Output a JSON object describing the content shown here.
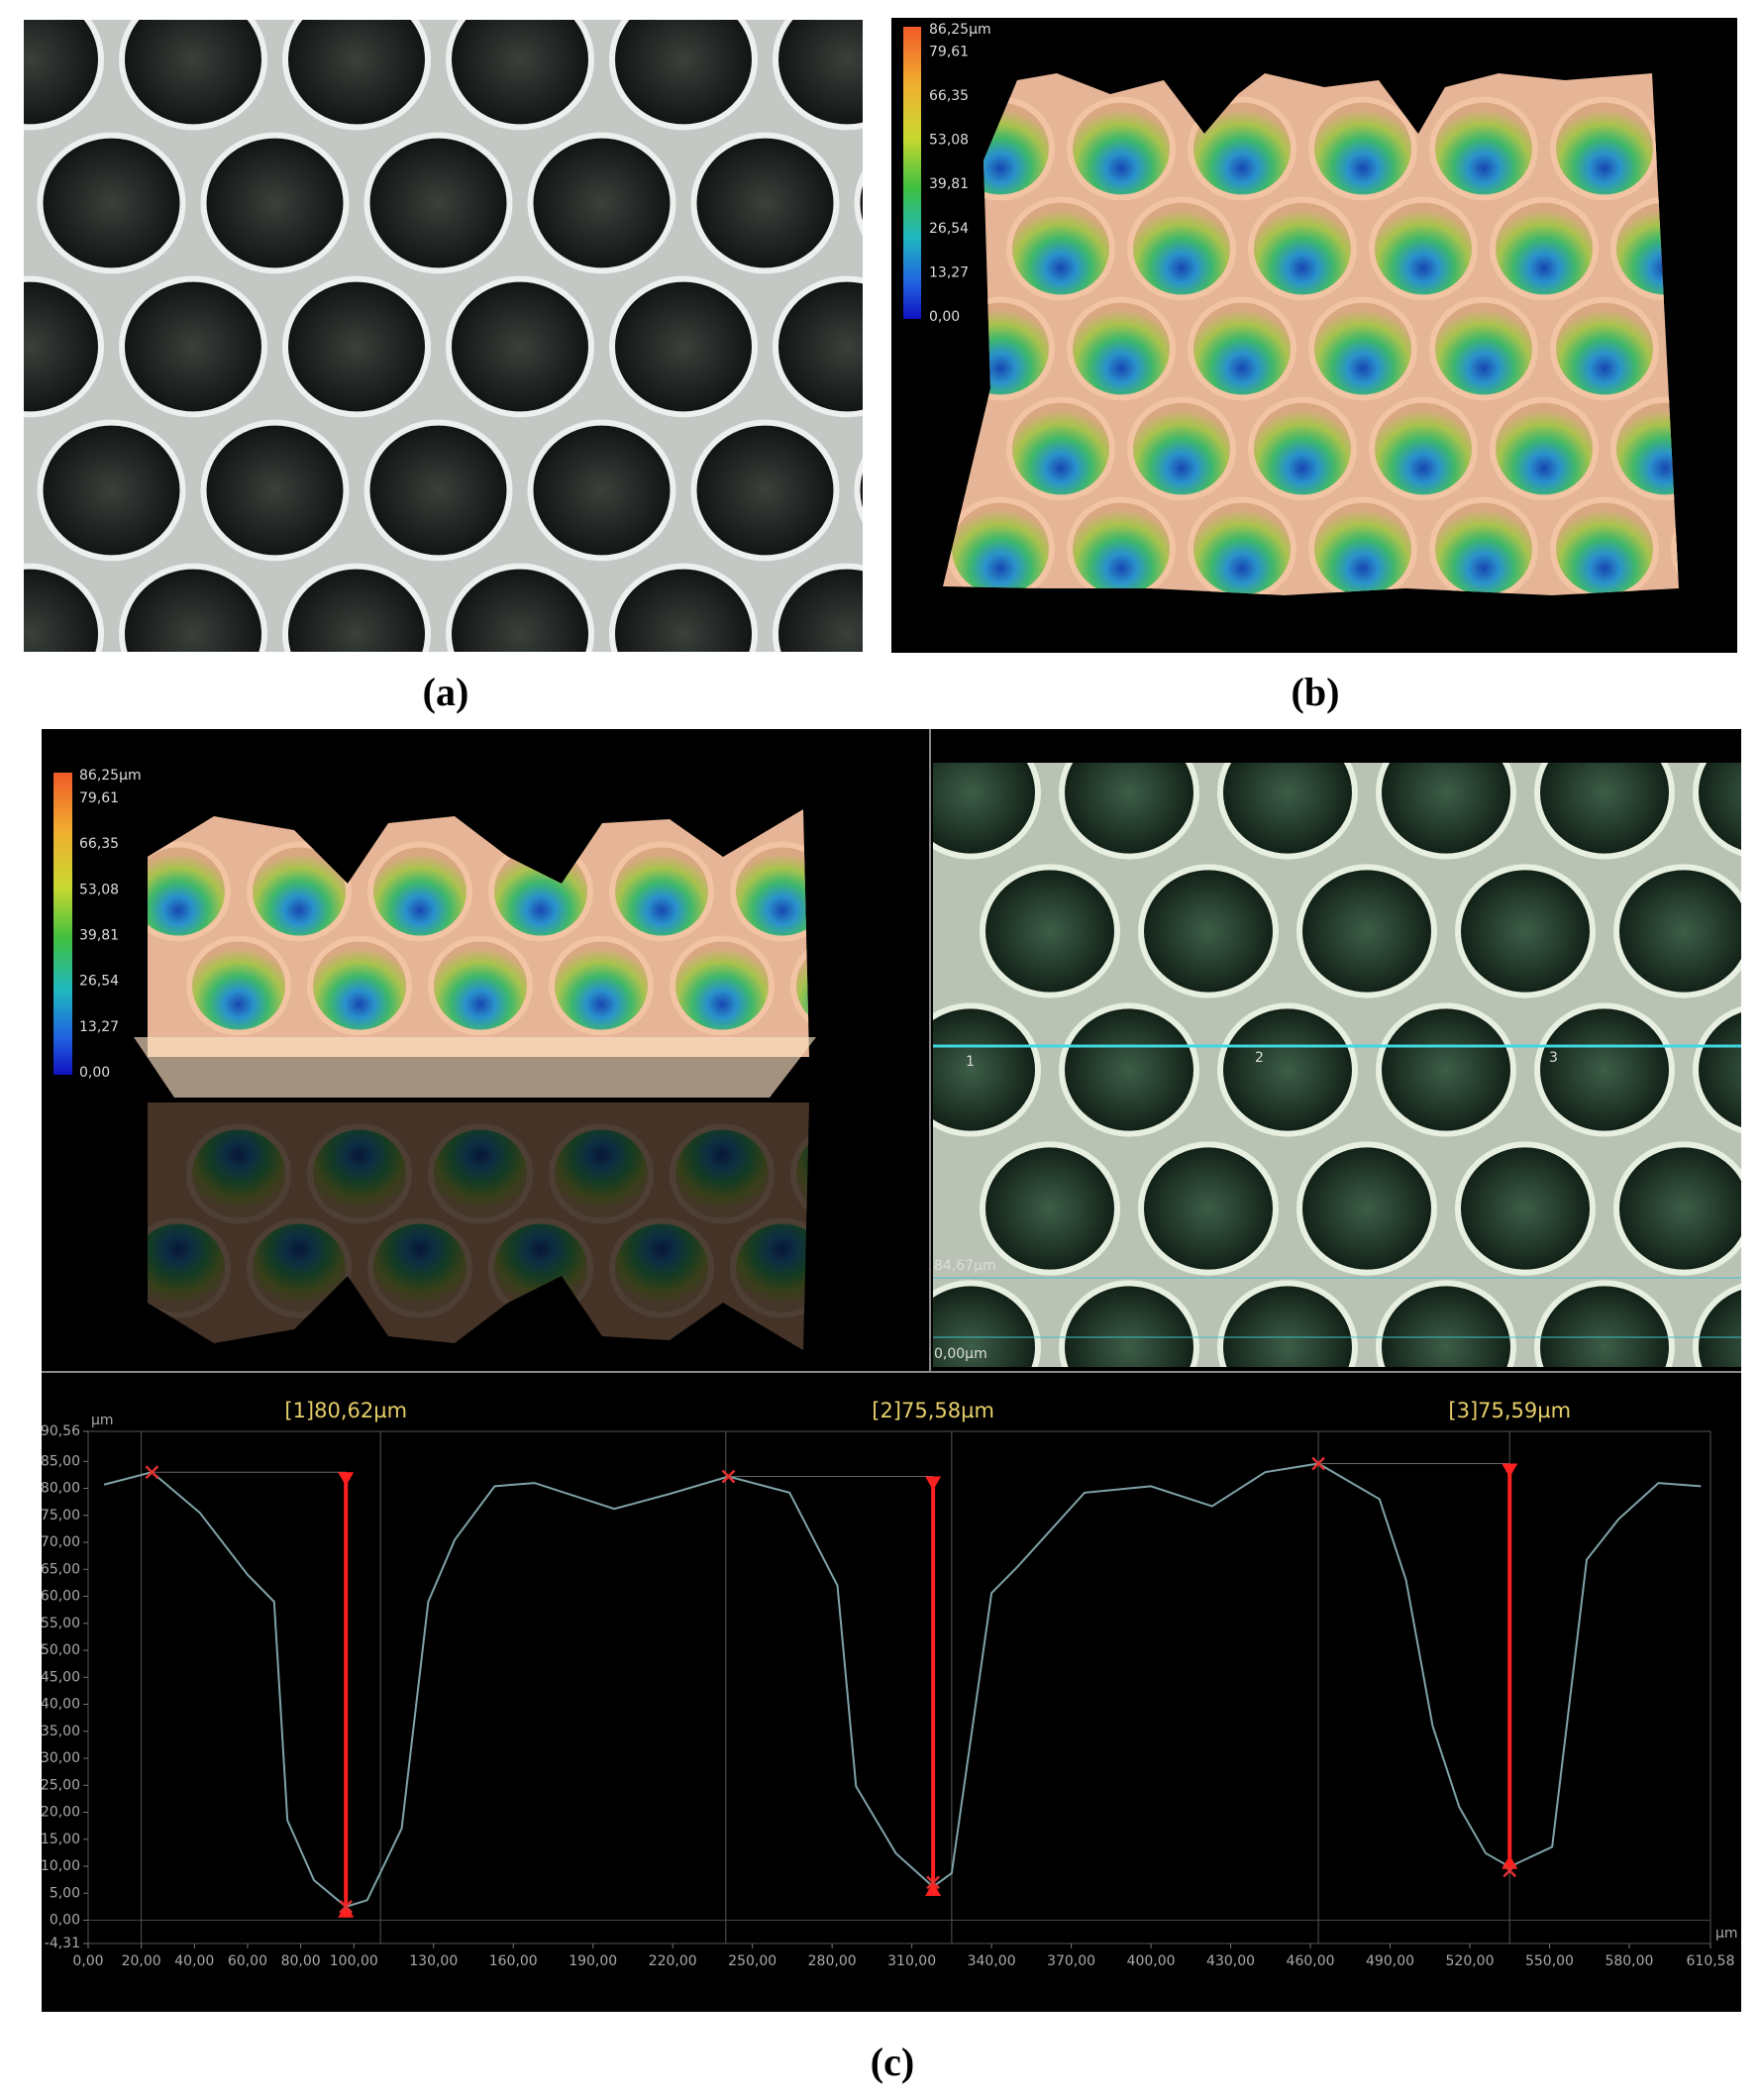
{
  "panel_labels": [
    "(a)",
    "(b)",
    "(c)"
  ],
  "panel_b": {
    "colorbar": {
      "lim": [
        0,
        86.25
      ],
      "ticks": [
        {
          "value": 86.25,
          "label": "86,25µm"
        },
        {
          "value": 79.61,
          "label": "79,61"
        },
        {
          "value": 66.35,
          "label": "66,35"
        },
        {
          "value": 53.08,
          "label": "53,08"
        },
        {
          "value": 39.81,
          "label": "39,81"
        },
        {
          "value": 26.54,
          "label": "26,54"
        },
        {
          "value": 13.27,
          "label": "13,27"
        },
        {
          "value": 0,
          "label": "0,00"
        }
      ]
    }
  },
  "panel_c": {
    "colorbar": {
      "lim": [
        0,
        86.25
      ],
      "ticks": [
        {
          "value": 86.25,
          "label": "86,25µm"
        },
        {
          "value": 79.61,
          "label": "79,61"
        },
        {
          "value": 66.35,
          "label": "66,35"
        },
        {
          "value": 53.08,
          "label": "53,08"
        },
        {
          "value": 39.81,
          "label": "39,81"
        },
        {
          "value": 26.54,
          "label": "26,54"
        },
        {
          "value": 13.27,
          "label": "13,27"
        },
        {
          "value": 0,
          "label": "0,00"
        }
      ]
    },
    "section_labels": [
      "1",
      "2",
      "3"
    ],
    "profile_range_labels": [
      "84,67µm",
      "0,00µm"
    ]
  },
  "chart_data": {
    "type": "line",
    "x_unit": "µm",
    "y_unit": "µm",
    "x": [
      6,
      24,
      42,
      60,
      70,
      75,
      85,
      97,
      105,
      118,
      128,
      138,
      153,
      168,
      198,
      219,
      241,
      264,
      282,
      289,
      304,
      318,
      325,
      340,
      350,
      375,
      400,
      423,
      443,
      463,
      486,
      496,
      506,
      516,
      526,
      535,
      551,
      564,
      576,
      591,
      607
    ],
    "series": [
      {
        "color": "#7fa3a8",
        "values": [
          80.7,
          83,
          75.5,
          64,
          59,
          18.5,
          7.4,
          2.5,
          3.7,
          17,
          59,
          70.5,
          80.4,
          81,
          76.2,
          79,
          82.2,
          79.2,
          62,
          24.8,
          12.4,
          6.2,
          8.7,
          60.6,
          65.6,
          79.2,
          80.4,
          76.7,
          83,
          84.6,
          78,
          63,
          36,
          21,
          12.4,
          9.9,
          13.6,
          66.8,
          74.3,
          81,
          80.4
        ]
      }
    ],
    "markers": {
      "color": "#e03030",
      "x": [
        24,
        97,
        241,
        318,
        463,
        535
      ],
      "y": [
        83,
        2.5,
        82.2,
        7,
        84.6,
        9.2
      ]
    },
    "measurements": [
      {
        "x": 97,
        "top": 83,
        "bottom": 0.5,
        "value": 80.62,
        "label": "[1]80,62µm"
      },
      {
        "x": 318,
        "top": 82.2,
        "bottom": 4.5,
        "value": 75.58,
        "label": "[2]75,58µm"
      },
      {
        "x": 535,
        "top": 84.6,
        "bottom": 9.5,
        "value": 75.59,
        "label": "[3]75,59µm"
      }
    ],
    "guide_lines": [
      20,
      110,
      240,
      325,
      463,
      535
    ],
    "xlim": [
      0,
      610.58
    ],
    "ylim": [
      -4.31,
      90.56
    ],
    "xticks": [
      {
        "value": 0,
        "label": "0,00"
      },
      {
        "value": 20,
        "label": "20,00"
      },
      {
        "value": 40,
        "label": "40,00"
      },
      {
        "value": 60,
        "label": "60,00"
      },
      {
        "value": 80,
        "label": "80,00"
      },
      {
        "value": 100,
        "label": "100,00"
      },
      {
        "value": 130,
        "label": "130,00"
      },
      {
        "value": 160,
        "label": "160,00"
      },
      {
        "value": 190,
        "label": "190,00"
      },
      {
        "value": 220,
        "label": "220,00"
      },
      {
        "value": 250,
        "label": "250,00"
      },
      {
        "value": 280,
        "label": "280,00"
      },
      {
        "value": 310,
        "label": "310,00"
      },
      {
        "value": 340,
        "label": "340,00"
      },
      {
        "value": 370,
        "label": "370,00"
      },
      {
        "value": 400,
        "label": "400,00"
      },
      {
        "value": 430,
        "label": "430,00"
      },
      {
        "value": 460,
        "label": "460,00"
      },
      {
        "value": 490,
        "label": "490,00"
      },
      {
        "value": 520,
        "label": "520,00"
      },
      {
        "value": 550,
        "label": "550,00"
      },
      {
        "value": 580,
        "label": "580,00"
      },
      {
        "value": 610.58,
        "label": "610,58"
      }
    ],
    "yticks": [
      {
        "value": -4.31,
        "label": "-4,31"
      },
      {
        "value": 0,
        "label": "0,00"
      },
      {
        "value": 5,
        "label": "5,00"
      },
      {
        "value": 10,
        "label": "10,00"
      },
      {
        "value": 15,
        "label": "15,00"
      },
      {
        "value": 20,
        "label": "20,00"
      },
      {
        "value": 25,
        "label": "25,00"
      },
      {
        "value": 30,
        "label": "30,00"
      },
      {
        "value": 35,
        "label": "35,00"
      },
      {
        "value": 40,
        "label": "40,00"
      },
      {
        "value": 45,
        "label": "45,00"
      },
      {
        "value": 50,
        "label": "50,00"
      },
      {
        "value": 55,
        "label": "55,00"
      },
      {
        "value": 60,
        "label": "60,00"
      },
      {
        "value": 65,
        "label": "65,00"
      },
      {
        "value": 70,
        "label": "70,00"
      },
      {
        "value": 75,
        "label": "75,00"
      },
      {
        "value": 80,
        "label": "80,00"
      },
      {
        "value": 85,
        "label": "85,00"
      },
      {
        "value": 90.56,
        "label": "90,56"
      }
    ]
  }
}
